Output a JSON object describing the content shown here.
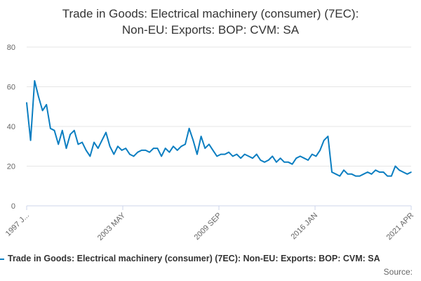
{
  "title": {
    "line1": "Trade in Goods: Electrical machinery (consumer) (7EC):",
    "line2": "Non-EU: Exports: BOP: CVM: SA"
  },
  "legend": {
    "label": "Trade in Goods: Electrical machinery (consumer) (7EC): Non-EU: Exports: BOP: CVM: SA"
  },
  "source": "Source:",
  "colors": {
    "series": "#0b7ec1",
    "grid": "#e6e6e6",
    "axis": "#ccd6eb"
  },
  "chart_data": {
    "type": "line",
    "title": "Trade in Goods: Electrical machinery (consumer) (7EC): Non-EU: Exports: BOP: CVM: SA",
    "xlabel": "",
    "ylabel": "",
    "ylim": [
      0,
      80
    ],
    "y_ticks": [
      0,
      20,
      40,
      60,
      80
    ],
    "x_tick_labels": [
      "1997 J...",
      "2003 MAY",
      "2009 SEP",
      "2016 JAN",
      "2021 APR"
    ],
    "grid": true,
    "legend_position": "bottom",
    "x_start": "1997-01",
    "x_end": "2021-04",
    "series": [
      {
        "name": "Trade in Goods: Electrical machinery (consumer) (7EC): Non-EU: Exports: BOP: CVM: SA",
        "x": [
          "1997-01",
          "1997-04",
          "1997-07",
          "1997-10",
          "1998-01",
          "1998-04",
          "1998-07",
          "1998-10",
          "1999-01",
          "1999-04",
          "1999-07",
          "1999-10",
          "2000-01",
          "2000-04",
          "2000-07",
          "2000-10",
          "2001-01",
          "2001-04",
          "2001-07",
          "2001-10",
          "2002-01",
          "2002-04",
          "2002-07",
          "2002-10",
          "2003-01",
          "2003-04",
          "2003-07",
          "2003-10",
          "2004-01",
          "2004-04",
          "2004-07",
          "2004-10",
          "2005-01",
          "2005-04",
          "2005-07",
          "2005-10",
          "2006-01",
          "2006-04",
          "2006-07",
          "2006-10",
          "2007-01",
          "2007-04",
          "2007-07",
          "2007-10",
          "2008-01",
          "2008-04",
          "2008-07",
          "2008-10",
          "2009-01",
          "2009-04",
          "2009-07",
          "2009-10",
          "2010-01",
          "2010-04",
          "2010-07",
          "2010-10",
          "2011-01",
          "2011-04",
          "2011-07",
          "2011-10",
          "2012-01",
          "2012-04",
          "2012-07",
          "2012-10",
          "2013-01",
          "2013-04",
          "2013-07",
          "2013-10",
          "2014-01",
          "2014-04",
          "2014-07",
          "2014-10",
          "2015-01",
          "2015-04",
          "2015-07",
          "2015-10",
          "2016-01",
          "2016-04",
          "2016-07",
          "2016-10",
          "2017-01",
          "2017-04",
          "2017-07",
          "2017-10",
          "2018-01",
          "2018-04",
          "2018-07",
          "2018-10",
          "2019-01",
          "2019-04",
          "2019-07",
          "2019-10",
          "2020-01",
          "2020-04",
          "2020-07",
          "2020-10",
          "2021-01",
          "2021-04"
        ],
        "values": [
          52,
          33,
          63,
          55,
          48,
          51,
          39,
          38,
          31,
          38,
          29,
          36,
          38,
          31,
          32,
          28,
          25,
          32,
          29,
          33,
          37,
          30,
          26,
          30,
          28,
          29,
          26,
          25,
          27,
          28,
          28,
          27,
          29,
          29,
          25,
          29,
          27,
          30,
          28,
          30,
          31,
          39,
          33,
          26,
          35,
          29,
          31,
          28,
          25,
          26,
          26,
          27,
          25,
          26,
          24,
          26,
          25,
          24,
          26,
          23,
          22,
          23,
          25,
          22,
          24,
          22,
          22,
          21,
          24,
          25,
          24,
          23,
          26,
          25,
          28,
          33,
          35,
          17,
          16,
          15,
          18,
          16,
          16,
          15,
          15,
          16,
          17,
          16,
          18,
          17,
          17,
          15,
          15,
          20,
          18,
          17,
          16,
          17
        ]
      }
    ]
  }
}
